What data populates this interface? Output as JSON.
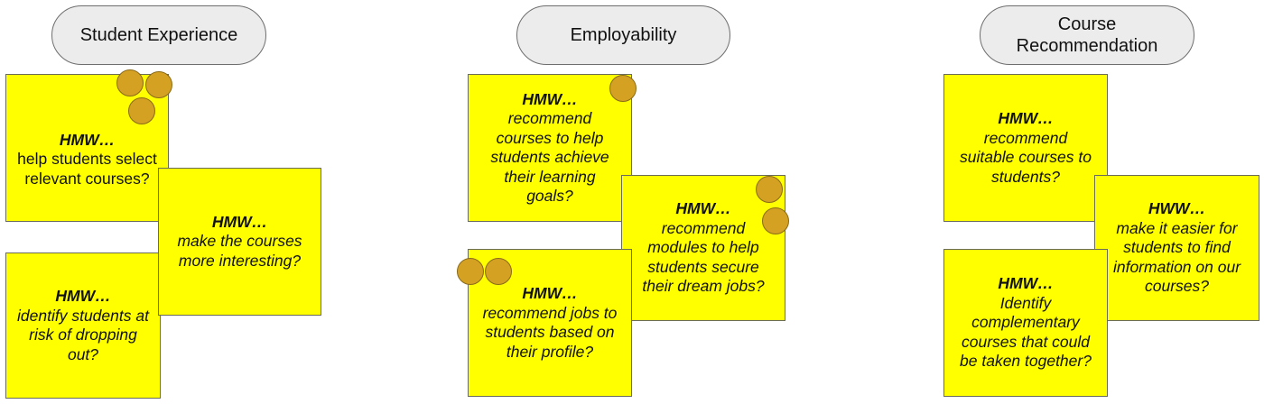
{
  "categories": {
    "student_experience": "Student Experience",
    "employability": "Employability",
    "course_recommendation": "Course\nRecommendation"
  },
  "notes": {
    "se1": {
      "head": "HMW…",
      "body": "help students select relevant courses?"
    },
    "se2": {
      "head": "HMW…",
      "body": "make the courses more interesting?"
    },
    "se3": {
      "head": "HMW…",
      "body": "identify students at risk of dropping out?"
    },
    "em1": {
      "head": "HMW…",
      "body": "recommend courses to help students achieve their learning goals?"
    },
    "em2": {
      "head": "HMW…",
      "body": "recommend modules to help students secure their dream jobs?"
    },
    "em3": {
      "head": "HMW…",
      "body": "recommend jobs to students based on their profile?"
    },
    "cr1": {
      "head": "HMW…",
      "body": "recommend suitable courses to students?"
    },
    "cr2": {
      "head": "HWW…",
      "body": "make it easier for students to find information on our courses?"
    },
    "cr3": {
      "head": "HMW…",
      "body": "Identify complementary courses that could be taken together?"
    }
  },
  "colors": {
    "note": "#ffff00",
    "vote_dot": "#d4a122",
    "pill": "#ececec"
  }
}
